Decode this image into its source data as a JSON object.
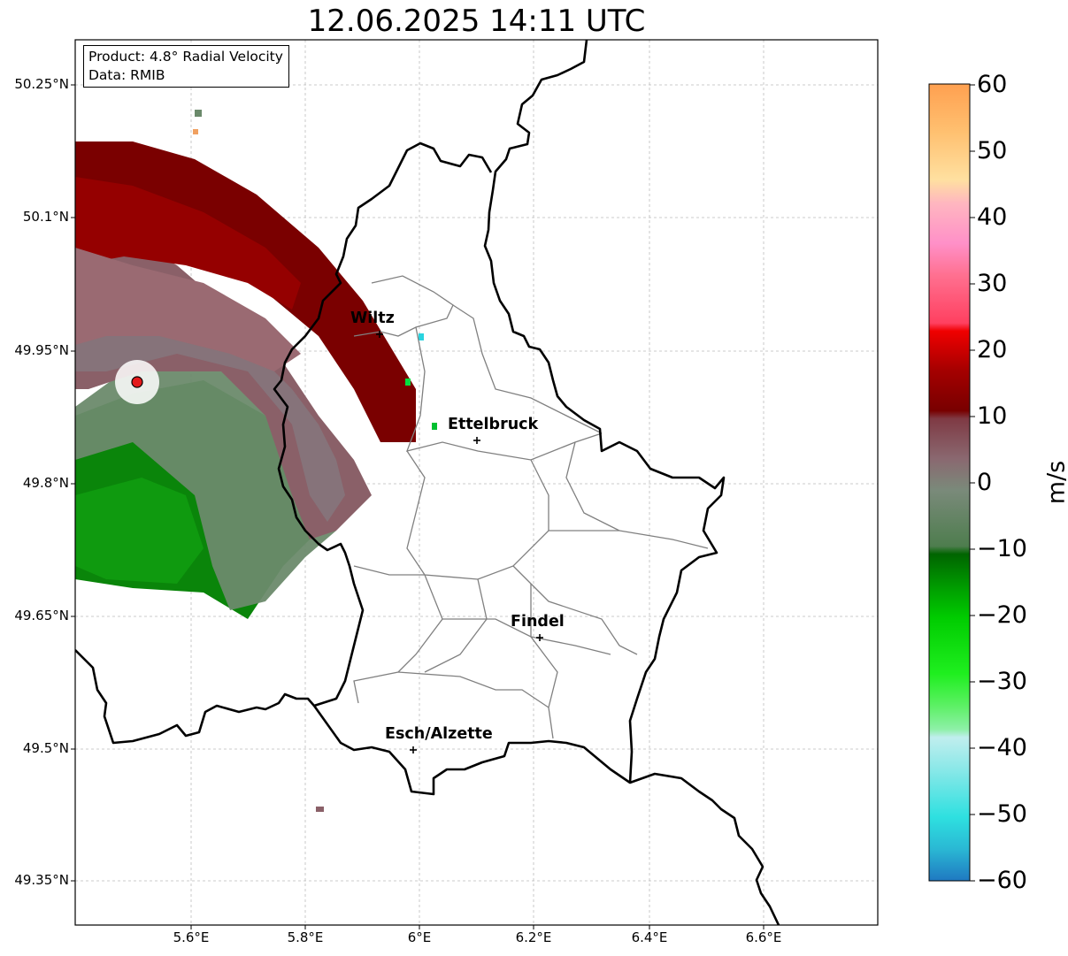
{
  "title": "12.06.2025 14:11 UTC",
  "info_box": {
    "product": "Product: 4.8° Radial Velocity",
    "data": "Data: RMIB"
  },
  "lat_labels": [
    "50.25°N",
    "50.1°N",
    "49.95°N",
    "49.8°N",
    "49.65°N",
    "49.5°N",
    "49.35°N"
  ],
  "lon_labels": [
    "5.6°E",
    "5.8°E",
    "6°E",
    "6.2°E",
    "6.4°E",
    "6.6°E"
  ],
  "cities": [
    {
      "name": "Wiltz"
    },
    {
      "name": "Ettelbruck"
    },
    {
      "name": "Findel"
    },
    {
      "name": "Esch/Alzette"
    }
  ],
  "colorbar": {
    "unit": "m/s",
    "range": [
      -60,
      60
    ],
    "ticks": [
      "60",
      "50",
      "40",
      "30",
      "20",
      "10",
      "0",
      "−10",
      "−20",
      "−30",
      "−40",
      "−50",
      "−60"
    ]
  },
  "colors": {
    "border_color": "#000000",
    "district_color": "#808080",
    "grid_color": "#bbbbbb",
    "radar_marker": "#e41a1c",
    "colorbar_stops": [
      "#1f78c1",
      "#2ab8d4",
      "#2ee0e0",
      "#8ae8e8",
      "#c0eeee",
      "#8ef0a8",
      "#5cf064",
      "#1fef1f",
      "#00cc00",
      "#009a00",
      "#006400",
      "#4e7d4e",
      "#7f7f7f",
      "#8a6068",
      "#7f3a44",
      "#780000",
      "#a40000",
      "#d60000",
      "#f00000",
      "#ff4060",
      "#ff7090",
      "#ff90c8",
      "#ffb6c0",
      "#ffdca0",
      "#ffc070",
      "#ffa050"
    ]
  }
}
